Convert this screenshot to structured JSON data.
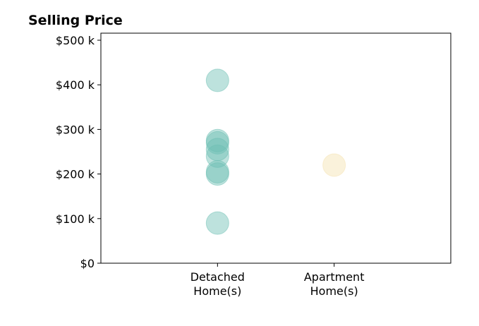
{
  "chart_data": {
    "type": "scatter",
    "title": "Selling Price",
    "xlabel": "",
    "ylabel": "",
    "categories": [
      [
        "Detached",
        "Home(s)"
      ],
      [
        "Apartment",
        "Home(s)"
      ]
    ],
    "xlim": [
      0,
      3
    ],
    "ylim": [
      0,
      500000
    ],
    "y_ticks": [
      {
        "value": 0,
        "label": "$0"
      },
      {
        "value": 100000,
        "label": "$100 k"
      },
      {
        "value": 200000,
        "label": "$200 k"
      },
      {
        "value": 300000,
        "label": "$300 k"
      },
      {
        "value": 400000,
        "label": "$400 k"
      },
      {
        "value": 500000,
        "label": "$500 k"
      }
    ],
    "series": [
      {
        "category": "Detached Home(s)",
        "x": 1,
        "color": "#6dbfb4",
        "values": [
          410000,
          275000,
          270000,
          255000,
          240000,
          205000,
          200000,
          90000
        ]
      },
      {
        "category": "Apartment Home(s)",
        "x": 2,
        "color": "#f5e2b0",
        "values": [
          220000
        ]
      }
    ],
    "grid": false,
    "legend": "none"
  }
}
